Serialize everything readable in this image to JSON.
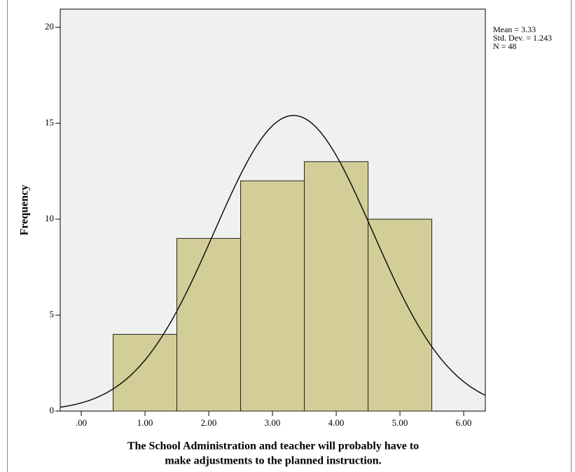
{
  "chart_data": {
    "type": "histogram",
    "x_label": [
      "The School Administration and teacher will probably have to",
      "make adjustments to the planned instruction."
    ],
    "y_label": "Frequency",
    "bins": [
      0.5,
      1.5,
      2.5,
      3.5,
      4.5,
      5.5
    ],
    "values": [
      4,
      9,
      12,
      13,
      10
    ],
    "color": "#d3ce97",
    "xlim": [
      -0.33,
      6.34
    ],
    "xticks": [
      {
        "value": 0,
        "label": ".00"
      },
      {
        "value": 1,
        "label": "1.00"
      },
      {
        "value": 2,
        "label": "2.00"
      },
      {
        "value": 3,
        "label": "3.00"
      },
      {
        "value": 4,
        "label": "4.00"
      },
      {
        "value": 5,
        "label": "5.00"
      },
      {
        "value": 6,
        "label": "6.00"
      }
    ],
    "ylim": [
      0,
      20.95
    ],
    "yticks": [
      0,
      5,
      10,
      15,
      20
    ],
    "normal_curve": {
      "mean": 3.33,
      "std_dev": 1.243,
      "n": 48
    },
    "stats_labels": [
      "Mean = 3.33",
      "Std. Dev. = 1.243",
      "N = 48"
    ]
  }
}
